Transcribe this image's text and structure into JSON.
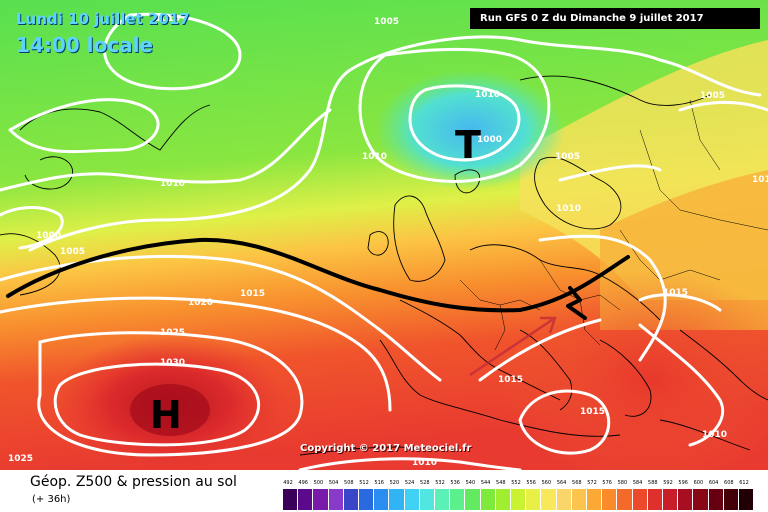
{
  "header": {
    "date_label": "Lundi 10 juillet 2017",
    "time_label": "14:00 locale",
    "run_label": "Run GFS 0 Z du Dimanche 9 juillet 2017"
  },
  "map": {
    "copyright": "Copyright © 2017 Meteociel.fr",
    "high_symbol": "H",
    "low_symbol": "T",
    "isobars": [
      "1005",
      "1010",
      "1010",
      "1010",
      "1005",
      "1000",
      "1005",
      "1000",
      "1010",
      "1010",
      "1005",
      "1010",
      "1015",
      "1020",
      "1025",
      "1030",
      "1015",
      "1015",
      "1015",
      "1010",
      "1025",
      "1010",
      "1010",
      "1015"
    ],
    "colors": {
      "front_line": "#000000",
      "isobar": "#ffffff",
      "warm_arrow": "#c0283a"
    }
  },
  "footer": {
    "title": "Géop. Z500 & pression au sol",
    "subtitle": "(+ 36h)"
  },
  "legend": {
    "ticks": [
      "492",
      "496",
      "500",
      "504",
      "508",
      "512",
      "516",
      "520",
      "524",
      "528",
      "532",
      "536",
      "540",
      "544",
      "548",
      "552",
      "556",
      "560",
      "564",
      "568",
      "572",
      "576",
      "580",
      "584",
      "588",
      "592",
      "596",
      "600",
      "604",
      "608",
      "612"
    ],
    "colors": [
      "#3a005a",
      "#5a0a8a",
      "#7a1aaa",
      "#8a3ac8",
      "#3a46c8",
      "#2a6ae0",
      "#2a8ef0",
      "#30b4f4",
      "#40d2f4",
      "#52e6e0",
      "#5af0b8",
      "#5cf08c",
      "#64ea60",
      "#7eea3c",
      "#a0ee30",
      "#c8f232",
      "#e8f046",
      "#f8e85a",
      "#fad66a",
      "#fcc44c",
      "#fca834",
      "#fa8a2a",
      "#f46a28",
      "#ec4a2a",
      "#e0302e",
      "#c81e2a",
      "#a80e22",
      "#880818",
      "#660010",
      "#440008",
      "#200004"
    ]
  }
}
